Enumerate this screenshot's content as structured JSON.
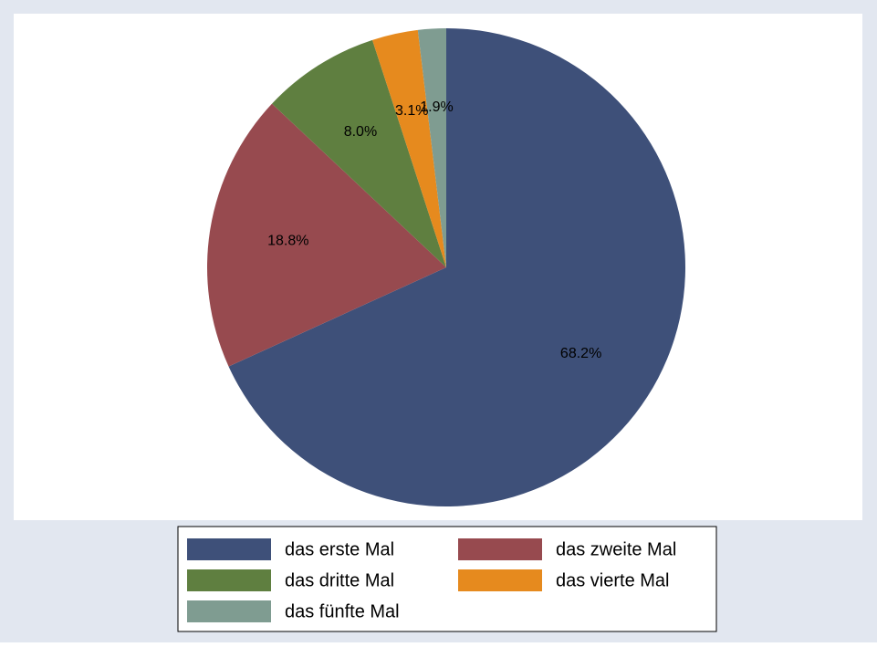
{
  "chart_data": {
    "type": "pie",
    "categories": [
      "das erste Mal",
      "das zweite Mal",
      "das dritte Mal",
      "das vierte Mal",
      "das fünfte Mal"
    ],
    "values": [
      68.2,
      18.8,
      8.0,
      3.1,
      1.9
    ],
    "value_labels": [
      "68.2%",
      "18.8%",
      "8.0%",
      "3.1%",
      "1.9%"
    ],
    "colors": [
      "#3e5079",
      "#974a4f",
      "#5f7f40",
      "#e68a1e",
      "#7f9c91"
    ],
    "legend": "bottom"
  }
}
